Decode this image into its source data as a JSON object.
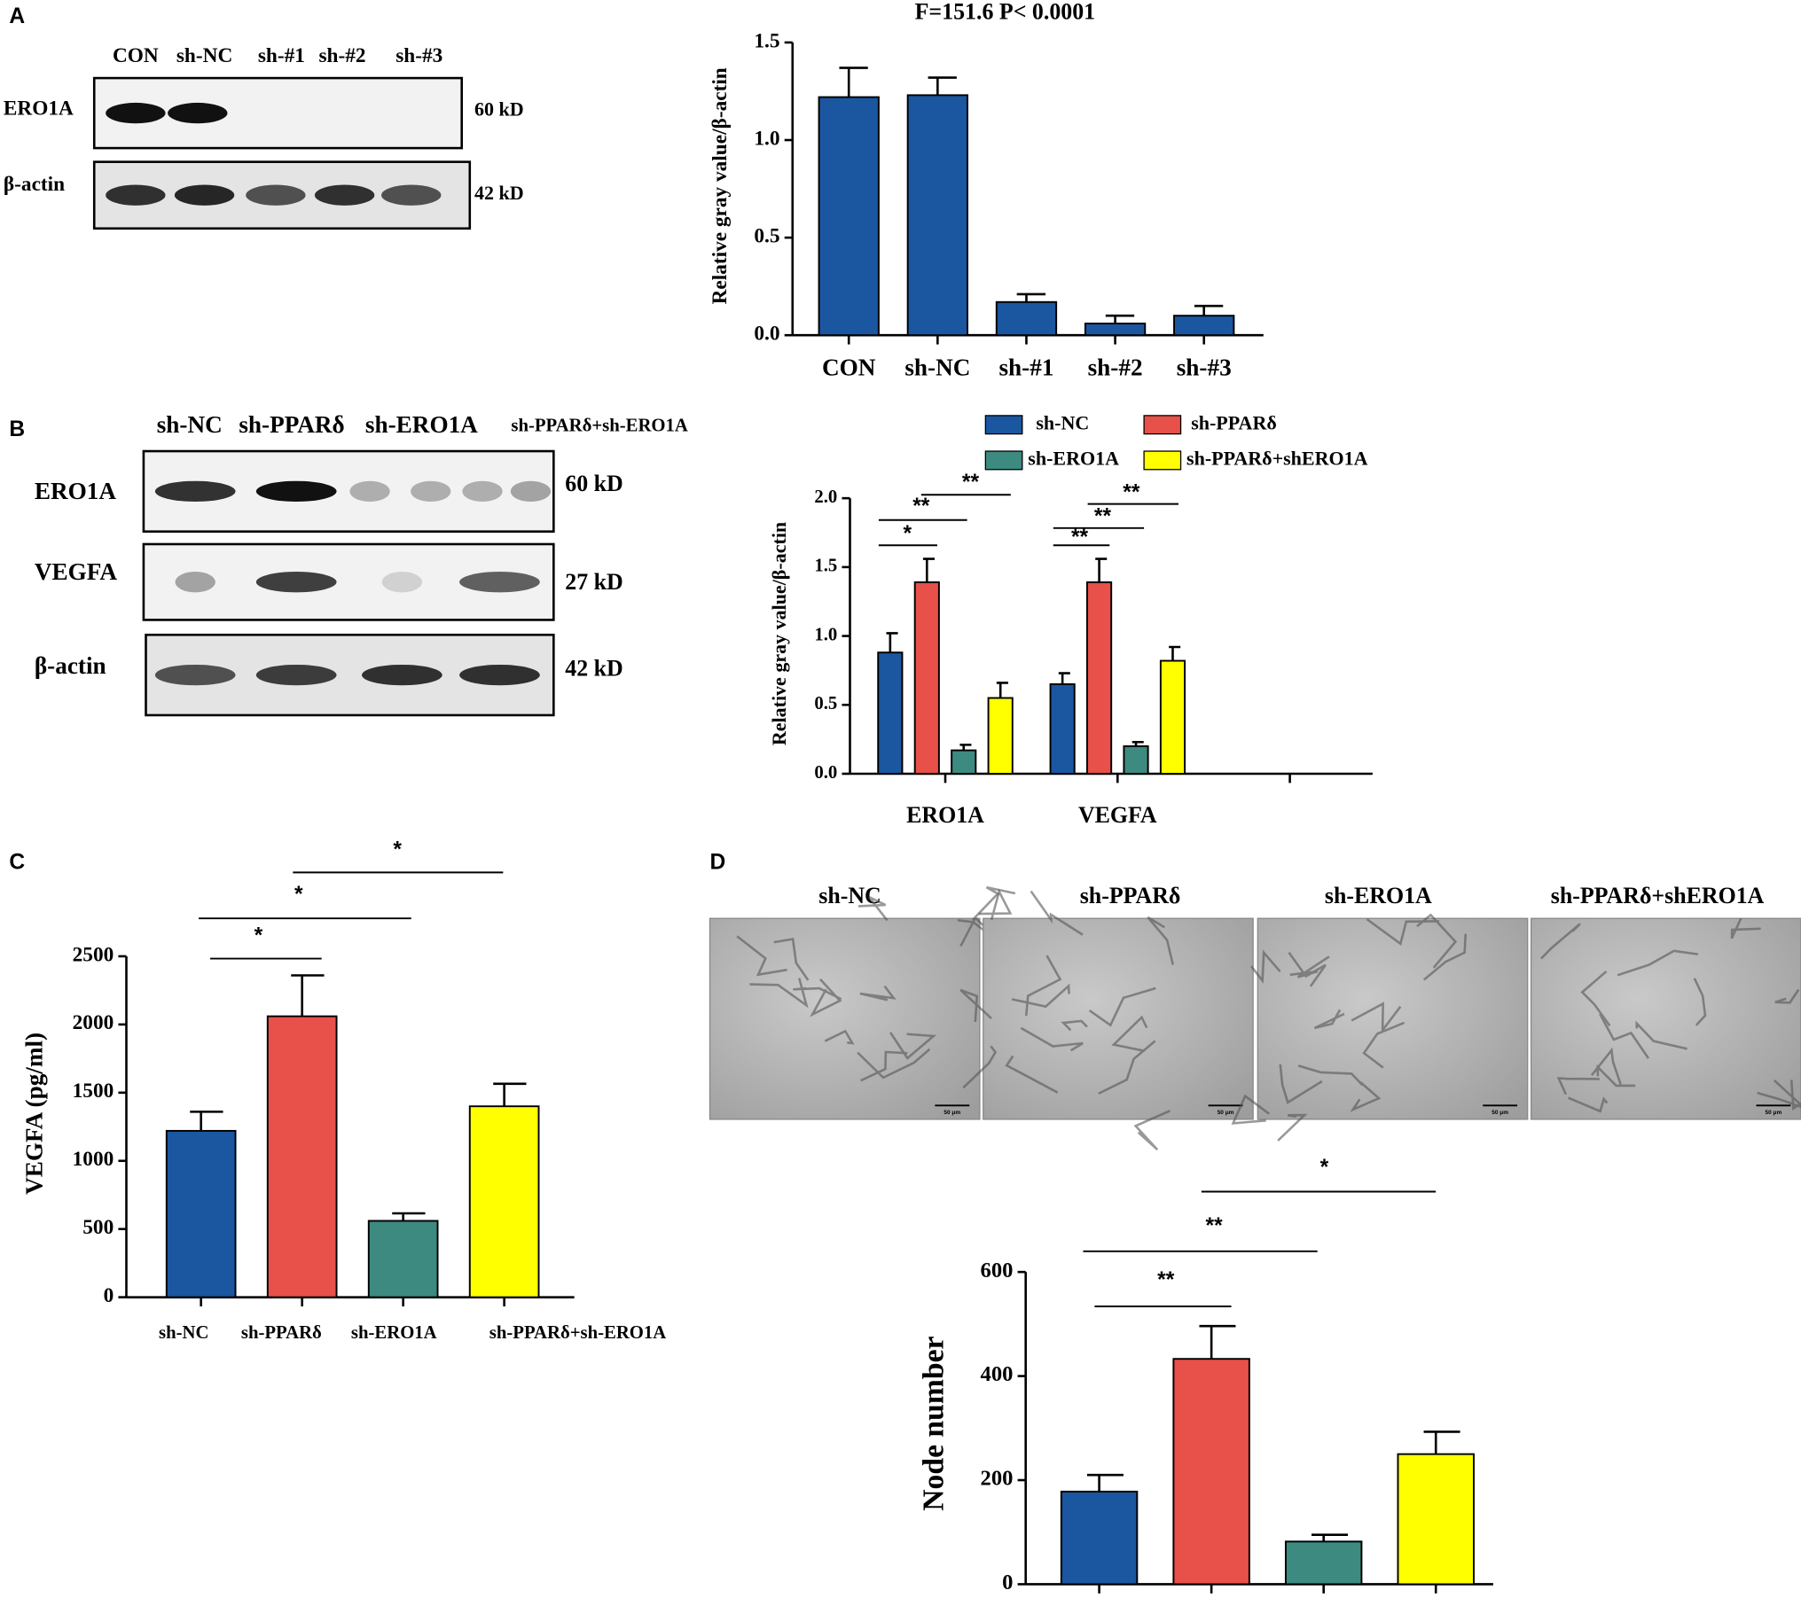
{
  "panel_labels": [
    "A",
    "B",
    "C",
    "D"
  ],
  "blots": [
    {
      "lanes": [
        "CON",
        "sh-NC",
        "sh-#1",
        "sh-#2",
        "sh-#3"
      ],
      "rows": [
        {
          "name": "ERO1A",
          "size": "60 kD"
        },
        {
          "name": "β-actin",
          "size": "42 kD"
        }
      ]
    },
    {
      "lanes": [
        "sh-NC",
        "sh-PPARδ",
        "sh-ERO1A",
        "sh-PPARδ+sh-ERO1A"
      ],
      "rows": [
        {
          "name": "ERO1A",
          "size": "60 kD"
        },
        {
          "name": "VEGFA",
          "size": "27 kD"
        },
        {
          "name": "β-actin",
          "size": "42 kD"
        }
      ]
    }
  ],
  "micrographs": {
    "labels": [
      "sh-NC",
      "sh-PPARδ",
      "sh-ERO1A",
      "sh-PPARδ+shERO1A"
    ],
    "scale_bar": "50 μm"
  },
  "chart_data": [
    {
      "type": "bar",
      "title": "F=151.6   P< 0.0001",
      "y_label": "Relative gray value/β-actin",
      "categories": [
        "CON",
        "sh-NC",
        "sh-#1",
        "sh-#2",
        "sh-#3"
      ],
      "values": [
        1.22,
        1.23,
        0.17,
        0.06,
        0.1
      ],
      "errors": [
        0.15,
        0.09,
        0.04,
        0.04,
        0.05
      ],
      "color": "#1b56a0",
      "ylim": [
        0,
        1.5
      ],
      "yticks": [
        {
          "value": 0,
          "label": "0.0"
        },
        {
          "value": 0.5,
          "label": "0.5"
        },
        {
          "value": 1,
          "label": "1.0"
        },
        {
          "value": 1.5,
          "label": "1.5"
        }
      ]
    },
    {
      "type": "bar",
      "y_label": "Relative gray value/β-actin",
      "categories": [
        "ERO1A",
        "VEGFA",
        null
      ],
      "series": [
        {
          "name": "sh-NC",
          "color": "#1b56a0",
          "values": [
            0.88,
            0.65,
            null
          ],
          "errors": [
            0.14,
            0.08,
            null
          ]
        },
        {
          "name": "sh-PPARδ",
          "color": "#e8504a",
          "values": [
            1.39,
            1.39,
            null
          ],
          "errors": [
            0.17,
            0.17,
            null
          ]
        },
        {
          "name": "sh-ERO1A",
          "color": "#3d8a80",
          "values": [
            0.17,
            0.2,
            null
          ],
          "errors": [
            0.04,
            0.03,
            null
          ]
        },
        {
          "name": "sh-PPARδ+shERO1A",
          "color": "#ffff00",
          "values": [
            0.55,
            0.82,
            null
          ],
          "errors": [
            0.11,
            0.1,
            null
          ]
        }
      ],
      "ylim": [
        0,
        2
      ],
      "yticks": [
        {
          "value": 0,
          "label": "0.0"
        },
        {
          "value": 0.5,
          "label": "0.5"
        },
        {
          "value": 1,
          "label": "1.0"
        },
        {
          "value": 1.5,
          "label": "1.5"
        },
        {
          "value": 2,
          "label": "2.0"
        }
      ],
      "significance": [
        "*",
        "**",
        "**",
        "**",
        "**",
        "**"
      ]
    },
    {
      "type": "bar",
      "y_label": "VEGFA (pg/ml)",
      "categories": [
        "sh-NC",
        "sh-PPARδ",
        "sh-ERO1A",
        "sh-PPARδ+sh-ERO1A"
      ],
      "values": [
        1220,
        2060,
        560,
        1400
      ],
      "errors": [
        140,
        300,
        55,
        165
      ],
      "colors": [
        "#1b56a0",
        "#e8504a",
        "#3d8a80",
        "#ffff00"
      ],
      "ylim": [
        0,
        2500
      ],
      "yticks": [
        0,
        500,
        1000,
        1500,
        2000,
        2500
      ],
      "significance": [
        "*",
        "*",
        "*"
      ]
    },
    {
      "type": "bar",
      "y_label": "Node number",
      "categories": [
        null,
        null,
        null,
        null
      ],
      "values": [
        178,
        433,
        82,
        250
      ],
      "errors": [
        32,
        63,
        13,
        43
      ],
      "colors": [
        "#1b56a0",
        "#e8504a",
        "#3d8a80",
        "#ffff00"
      ],
      "ylim": [
        0,
        600
      ],
      "yticks": [
        0,
        200,
        400,
        600
      ],
      "significance": [
        "**",
        "**",
        "*"
      ]
    }
  ]
}
